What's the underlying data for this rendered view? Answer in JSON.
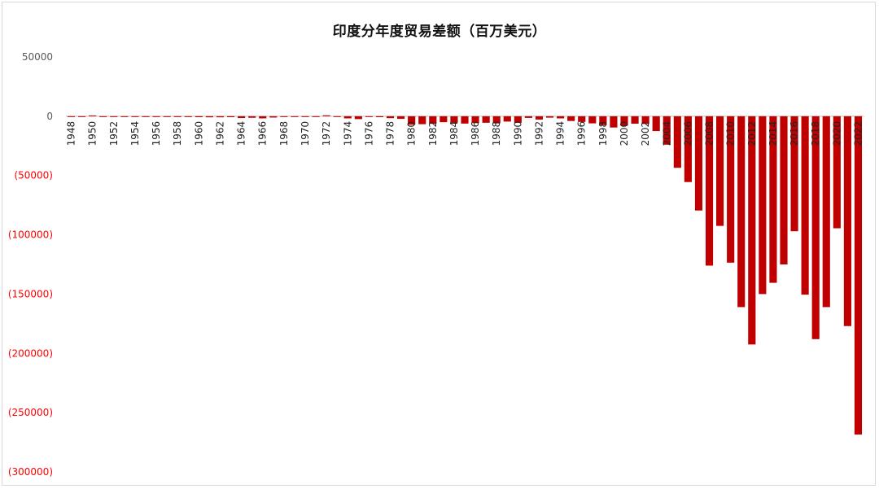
{
  "chart_data": {
    "type": "bar",
    "title": "印度分年度贸易差额（百万美元）",
    "xlabel": "",
    "ylabel": "",
    "ylim": [
      -300000,
      50000
    ],
    "yticks": [
      {
        "value": 50000,
        "label": "50000"
      },
      {
        "value": 0,
        "label": "0"
      },
      {
        "value": -50000,
        "label": "(50000)"
      },
      {
        "value": -100000,
        "label": "(100000)"
      },
      {
        "value": -150000,
        "label": "(150000)"
      },
      {
        "value": -200000,
        "label": "(200000)"
      },
      {
        "value": -250000,
        "label": "(250000)"
      },
      {
        "value": -300000,
        "label": "(300000)"
      }
    ],
    "tick_labels": [
      "1948",
      "1950",
      "1952",
      "1954",
      "1956",
      "1958",
      "1960",
      "1962",
      "1964",
      "1966",
      "1968",
      "1970",
      "1972",
      "1974",
      "1976",
      "1978",
      "1980",
      "1982",
      "1984",
      "1986",
      "1988",
      "1990",
      "1992",
      "1994",
      "1996",
      "1998",
      "2000",
      "2002",
      "2004",
      "2006",
      "2008",
      "2010",
      "2012",
      "2014",
      "2016",
      "2018",
      "2020",
      "2022"
    ],
    "categories": [
      "1948",
      "1949",
      "1950",
      "1951",
      "1952",
      "1953",
      "1954",
      "1955",
      "1956",
      "1957",
      "1958",
      "1959",
      "1960",
      "1961",
      "1962",
      "1963",
      "1964",
      "1965",
      "1966",
      "1967",
      "1968",
      "1969",
      "1970",
      "1971",
      "1972",
      "1973",
      "1974",
      "1975",
      "1976",
      "1977",
      "1978",
      "1979",
      "1980",
      "1981",
      "1982",
      "1983",
      "1984",
      "1985",
      "1986",
      "1987",
      "1988",
      "1989",
      "1990",
      "1991",
      "1992",
      "1993",
      "1994",
      "1995",
      "1996",
      "1997",
      "1998",
      "1999",
      "2000",
      "2001",
      "2002",
      "2003",
      "2004",
      "2005",
      "2006",
      "2007",
      "2008",
      "2009",
      "2010",
      "2011",
      "2012",
      "2013",
      "2014",
      "2015",
      "2016",
      "2017",
      "2018",
      "2019",
      "2020",
      "2021",
      "2022"
    ],
    "values": [
      -300,
      -500,
      700,
      -200,
      -400,
      -300,
      -300,
      -500,
      -600,
      -600,
      -700,
      -700,
      -800,
      -900,
      -900,
      -800,
      -1500,
      -1300,
      -1800,
      -1100,
      -700,
      -300,
      -100,
      -200,
      800,
      -500,
      -1800,
      -2400,
      -600,
      -800,
      -1600,
      -2200,
      -7200,
      -6700,
      -6400,
      -5000,
      -5500,
      -6200,
      -5800,
      -5500,
      -6000,
      -4500,
      -5500,
      -1400,
      -2800,
      -1200,
      -1800,
      -4000,
      -4800,
      -6000,
      -7500,
      -9500,
      -8000,
      -6300,
      -6500,
      -12500,
      -24000,
      -43500,
      -55500,
      -79500,
      -126000,
      -92500,
      -123500,
      -161000,
      -192500,
      -150000,
      -140500,
      -125000,
      -97000,
      -150500,
      -188000,
      -161000,
      -94500,
      -177000,
      -268500
    ],
    "colors": {
      "positive": "#c00000",
      "negative": "#c00000",
      "zero_axis": "#bfbfbf",
      "negative_label": "#ff0000",
      "positive_label": "#595959"
    },
    "grid": false,
    "legend": "none"
  }
}
